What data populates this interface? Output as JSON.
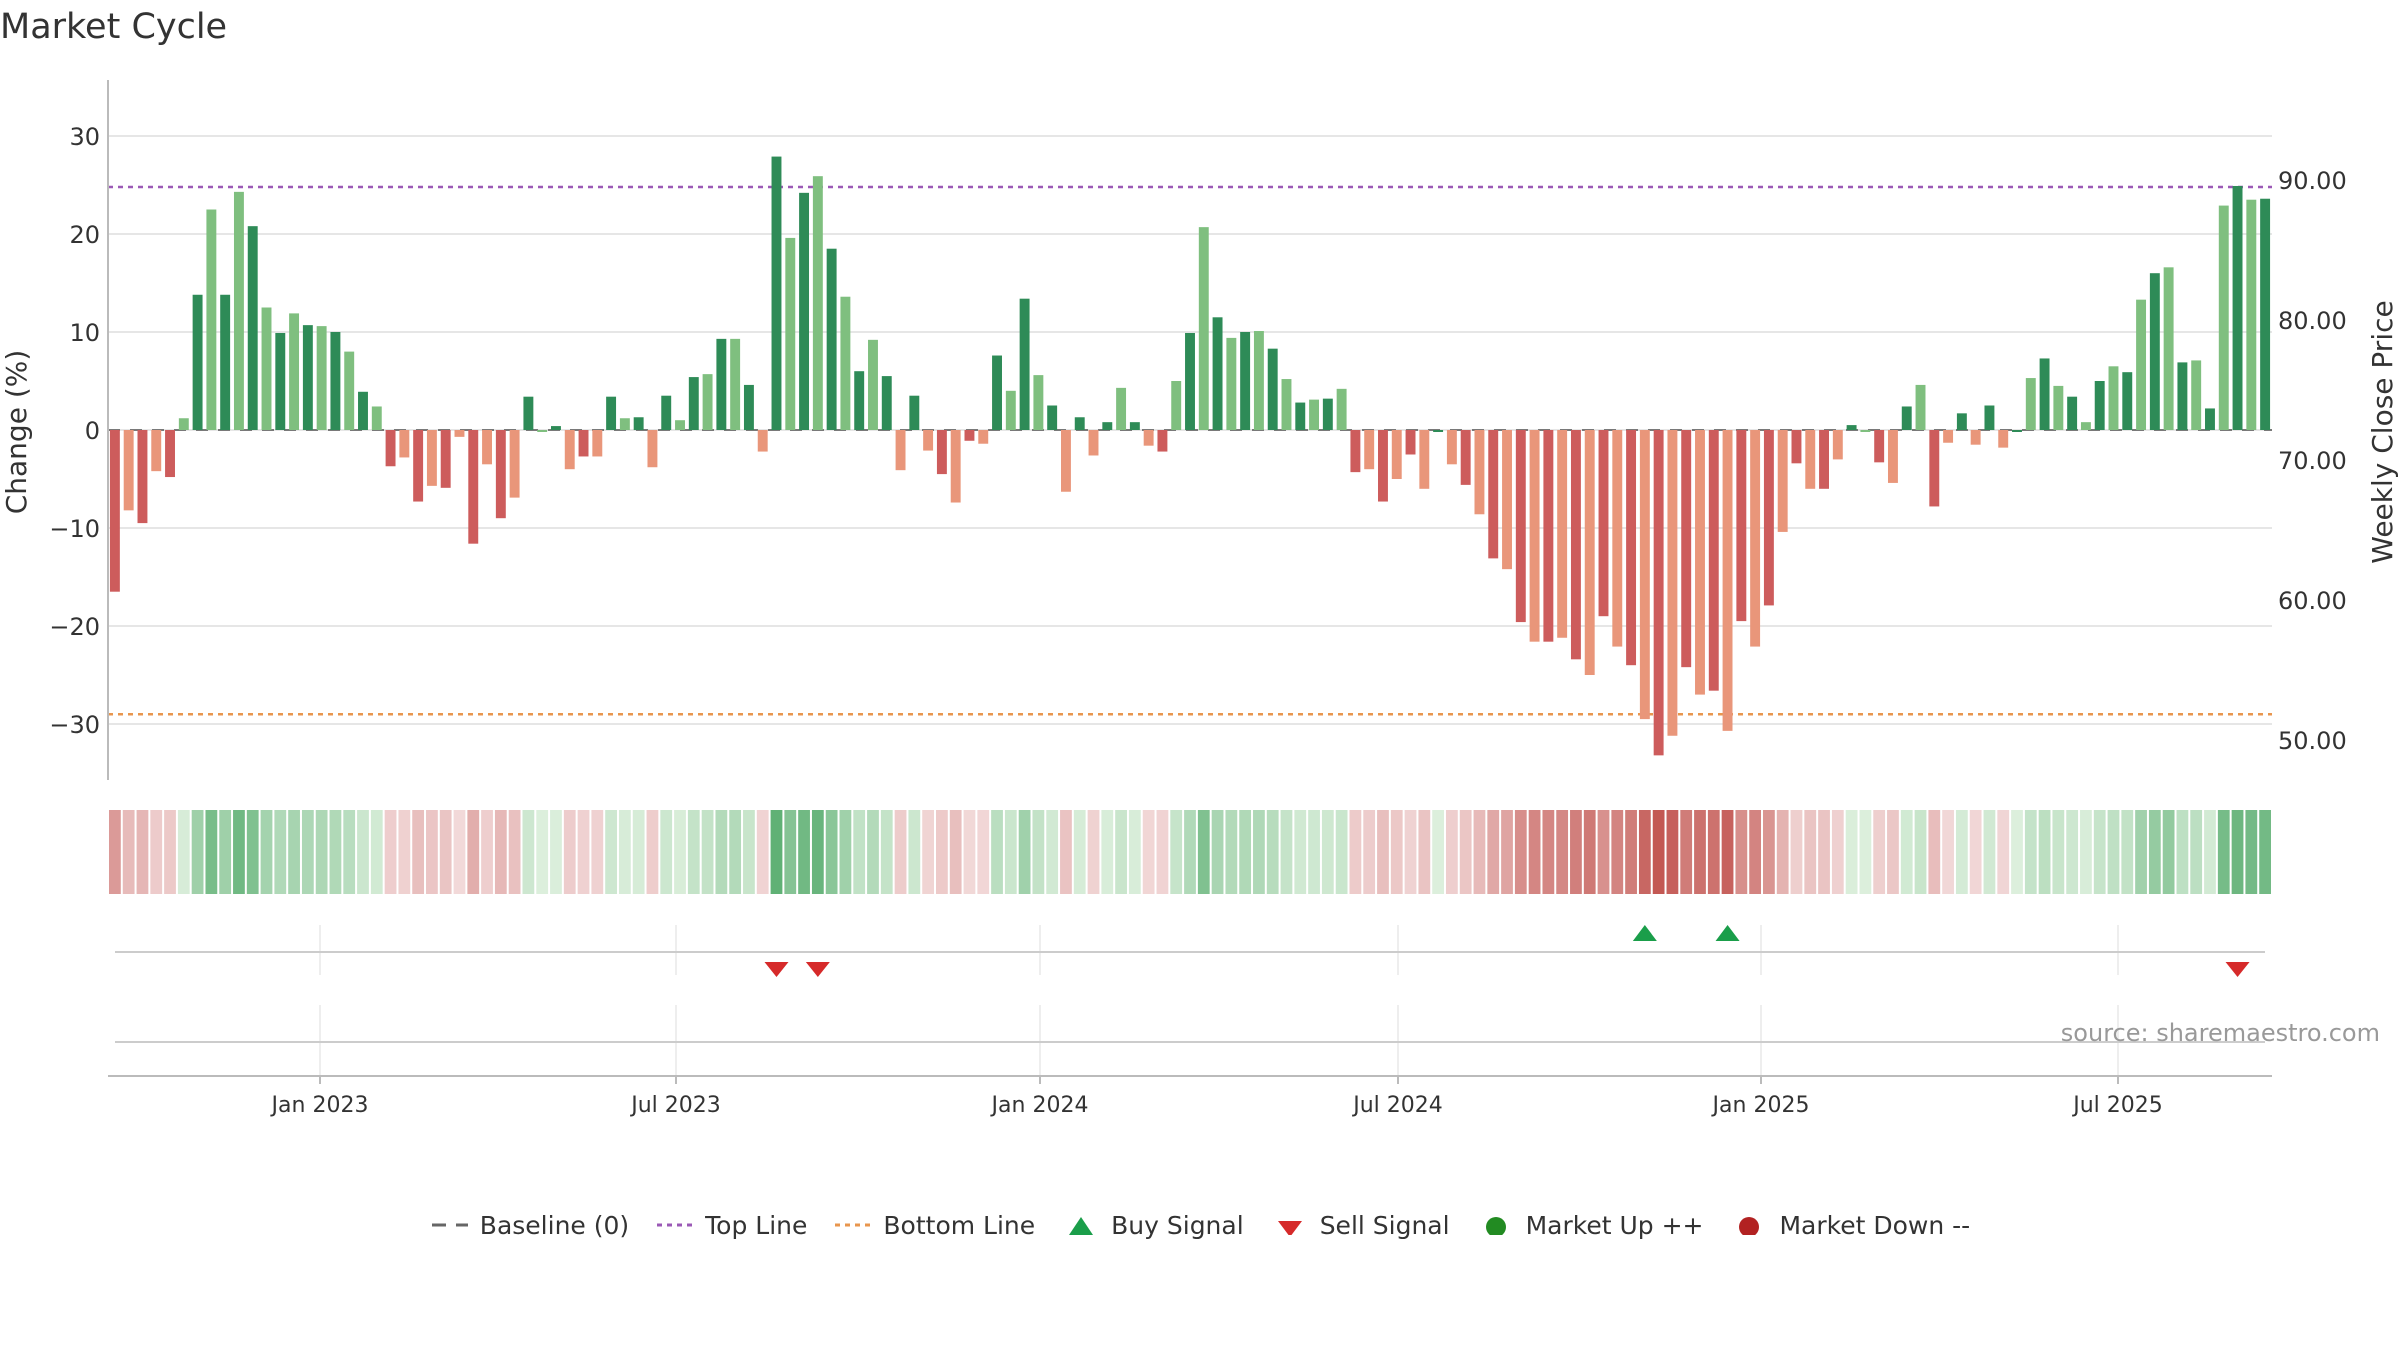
{
  "title": "Market Cycle",
  "source_note": "source: sharemaestro.com",
  "colors": {
    "up_strong": "#2e8b57",
    "up_light": "#7fbf7f",
    "down_strong": "#cd5c5c",
    "down_light": "#e9967a",
    "top_line": "#9b59b6",
    "bottom_line": "#e8964e",
    "buy": "#1a9e4a",
    "sell": "#d62a2a",
    "market_up": "#228b22",
    "market_down": "#b22222",
    "grid": "#e6e6e6",
    "axis": "#bbbbbb"
  },
  "legend": {
    "baseline": "Baseline (0)",
    "top_line": "Top Line",
    "bottom_line": "Bottom Line",
    "buy": "Buy Signal",
    "sell": "Sell Signal",
    "market_up": "Market Up ++",
    "market_down": "Market Down --"
  },
  "chart_data": {
    "type": "bar",
    "title": "Market Cycle",
    "ylabel": "Change (%)",
    "y2label": "Weekly Close Price",
    "ylim": [
      -36,
      36
    ],
    "yticks": [
      30,
      20,
      10,
      0,
      -10,
      -20,
      -30
    ],
    "ytick_labels": [
      "30",
      "20",
      "10",
      "0",
      "−10",
      "−20",
      "−30"
    ],
    "y2ticks": [
      "90.00",
      "80.00",
      "70.00",
      "60.00",
      "50.00"
    ],
    "xticks": [
      "Jan 2023",
      "Jul 2023",
      "Jan 2024",
      "Jul 2024",
      "Jan 2025",
      "Jul 2025"
    ],
    "top_line": 24.8,
    "bottom_line": -29.0,
    "grid": true,
    "legend_position": "bottom",
    "series": [
      {
        "values": [
          -16.5,
          -8.2,
          -9.5,
          -4.2,
          -4.8,
          1.2,
          13.8,
          22.5,
          13.8,
          24.3,
          20.8,
          12.5,
          9.9,
          11.9,
          10.7,
          10.6,
          10.0,
          8.0,
          3.9,
          2.4,
          -3.7,
          -2.8,
          -7.3,
          -5.7,
          -5.9,
          -0.7,
          -11.6,
          -3.5,
          -9.0,
          -6.9,
          3.4,
          0.0,
          0.4,
          -4.0,
          -2.7,
          -2.7,
          3.4,
          1.2,
          1.3,
          -3.8,
          3.5,
          1.0,
          5.4,
          5.7,
          9.3,
          9.3,
          4.6,
          -2.2,
          27.9,
          19.6,
          24.2,
          25.9,
          18.5,
          13.6,
          6.0,
          9.2,
          5.5,
          -4.1,
          3.5,
          -2.1,
          -4.5,
          -7.4,
          -1.1,
          -1.4,
          7.6,
          4.0,
          13.4,
          5.6,
          2.5,
          -6.3,
          1.3,
          -2.6,
          0.8,
          4.3,
          0.8,
          -1.6,
          -2.2,
          5.0,
          9.9,
          20.7,
          11.5,
          9.4,
          10.0,
          10.1,
          8.3,
          5.2,
          2.8,
          3.1,
          3.2,
          4.2,
          -4.3,
          -4.0,
          -7.3,
          -5.0,
          -2.5,
          -6.0,
          0.0,
          -3.5,
          -5.6,
          -8.6,
          -13.1,
          -14.2,
          -19.6,
          -21.6,
          -21.6,
          -21.2,
          -23.4,
          -25.0,
          -19.0,
          -22.1,
          -24.0,
          -29.5,
          -33.2,
          -31.2,
          -24.2,
          -27.0,
          -26.6,
          -30.7,
          -19.5,
          -22.1,
          -17.9,
          -10.4,
          -3.4,
          -6.0,
          -6.0,
          -3.0,
          0.5,
          0.0,
          -3.3,
          -5.4,
          2.4,
          4.6,
          -7.8,
          -1.3,
          1.7,
          -1.5,
          2.5,
          -1.8,
          0.0,
          5.3,
          7.3,
          4.5,
          3.4,
          0.8,
          5.0,
          6.5,
          5.9,
          13.3,
          16.0,
          16.6,
          6.9,
          7.1,
          2.2,
          22.9,
          24.9,
          23.5,
          23.6
        ]
      }
    ],
    "signals": {
      "buy_positions": [
        111,
        117
      ],
      "sell_positions": [
        48,
        51,
        154
      ]
    }
  }
}
